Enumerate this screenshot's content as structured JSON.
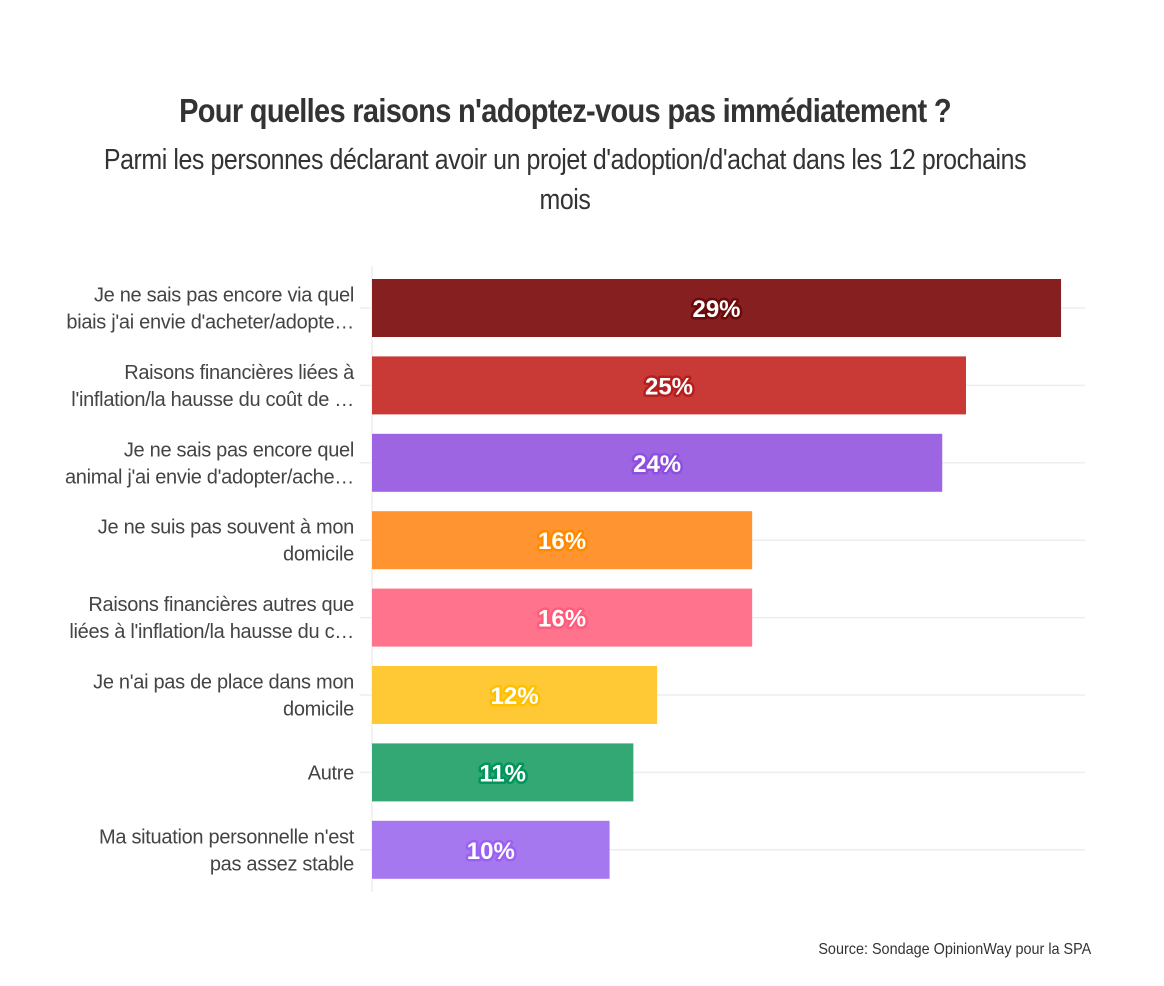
{
  "chart_data": {
    "type": "bar",
    "orientation": "horizontal",
    "title": "Pour quelles raisons n'adoptez-vous pas immédiatement ?",
    "subtitle": "Parmi les personnes déclarant avoir un projet d'adoption/d'achat dans les 12 prochains mois",
    "xlabel": "",
    "ylabel": "",
    "xlim": [
      0,
      30
    ],
    "grid": true,
    "legend": "none",
    "unit": "%",
    "categories": [
      [
        "Je ne sais pas encore via quel",
        "biais j'ai envie d'acheter/adopte…"
      ],
      [
        "Raisons financières liées à",
        "l'inflation/la hausse du coût de …"
      ],
      [
        "Je ne sais pas encore quel",
        "animal j'ai envie d'adopter/ache…"
      ],
      [
        "Je ne suis pas souvent à mon",
        "domicile"
      ],
      [
        "Raisons financières autres que",
        "liées à l'inflation/la hausse du c…"
      ],
      [
        "Je n'ai pas de place dans mon",
        "domicile"
      ],
      [
        "Autre"
      ],
      [
        "Ma situation personnelle n'est",
        "pas assez stable"
      ]
    ],
    "values": [
      29,
      25,
      24,
      16,
      16,
      12,
      11,
      10
    ],
    "value_labels": [
      "29%",
      "25%",
      "24%",
      "16%",
      "16%",
      "12%",
      "11%",
      "10%"
    ],
    "colors": [
      "#861f1f",
      "#c93a37",
      "#9e65e3",
      "#ff9431",
      "#ff738c",
      "#ffc935",
      "#34a874",
      "#a678ef"
    ],
    "label_outline_colors": [
      "#6a0a0a",
      "#b51e1e",
      "#8e4fe0",
      "#ff8a00",
      "#ff5c7c",
      "#ffc000",
      "#00955a",
      "#9a60f0"
    ],
    "source": "Source: Sondage OpinionWay pour la SPA"
  }
}
